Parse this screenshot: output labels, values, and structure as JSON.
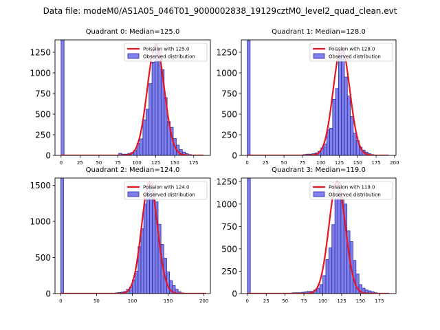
{
  "figure": {
    "suptitle": "Data file: modeM0/AS1A05_046T01_9000002838_19129cztM0_level2_quad_clean.evt"
  },
  "legend": {
    "observed_label": "Observed distribution"
  },
  "colors": {
    "bar_fill": "#8080ea",
    "bar_edge": "#2a2aa8",
    "fit_line": "#e8141e"
  },
  "chart_data": [
    {
      "type": "bar",
      "title": "Quadrant 0: Median=125.0",
      "fit_label": "Poission with 125.0",
      "median": 125.0,
      "peak": 1340,
      "sigma": 11.2,
      "xlim": [
        -8,
        197
      ],
      "ylim": [
        0,
        1400
      ],
      "xticks": [
        0,
        25,
        50,
        75,
        100,
        125,
        150,
        175
      ],
      "yticks": [
        0,
        250,
        500,
        750,
        1000,
        1250
      ],
      "fit_range": [
        0,
        188
      ],
      "bin_width": 4,
      "zero_bar": 1400,
      "bins": [
        [
          76,
          25
        ],
        [
          80,
          15
        ],
        [
          84,
          15
        ],
        [
          88,
          25
        ],
        [
          92,
          35
        ],
        [
          96,
          60
        ],
        [
          100,
          145
        ],
        [
          104,
          200
        ],
        [
          108,
          430
        ],
        [
          112,
          560
        ],
        [
          116,
          870
        ],
        [
          120,
          1130
        ],
        [
          124,
          1350
        ],
        [
          128,
          1270
        ],
        [
          132,
          1040
        ],
        [
          136,
          700
        ],
        [
          140,
          410
        ],
        [
          144,
          340
        ],
        [
          148,
          205
        ],
        [
          152,
          125
        ],
        [
          156,
          70
        ],
        [
          160,
          40
        ],
        [
          164,
          20
        ],
        [
          168,
          10
        ]
      ]
    },
    {
      "type": "bar",
      "title": "Quadrant 1: Median=128.0",
      "fit_label": "Poission with 128.0",
      "median": 128.0,
      "peak": 1310,
      "sigma": 11.3,
      "xlim": [
        -8,
        202
      ],
      "ylim": [
        0,
        1400
      ],
      "xticks": [
        0,
        25,
        50,
        75,
        100,
        125,
        150,
        175,
        200
      ],
      "yticks": [
        0,
        250,
        500,
        750,
        1000,
        1250
      ],
      "fit_range": [
        0,
        192
      ],
      "bin_width": 4,
      "zero_bar": 1400,
      "bins": [
        [
          76,
          10
        ],
        [
          80,
          15
        ],
        [
          84,
          15
        ],
        [
          88,
          20
        ],
        [
          92,
          30
        ],
        [
          96,
          50
        ],
        [
          100,
          90
        ],
        [
          104,
          140
        ],
        [
          108,
          310
        ],
        [
          112,
          330
        ],
        [
          116,
          680
        ],
        [
          120,
          810
        ],
        [
          124,
          1240
        ],
        [
          128,
          1310
        ],
        [
          132,
          950
        ],
        [
          136,
          720
        ],
        [
          140,
          470
        ],
        [
          144,
          270
        ],
        [
          148,
          180
        ],
        [
          152,
          100
        ],
        [
          156,
          65
        ],
        [
          160,
          40
        ],
        [
          164,
          20
        ],
        [
          168,
          10
        ]
      ]
    },
    {
      "type": "bar",
      "title": "Quadrant 2: Median=124.0",
      "fit_label": "Poission with 124.0",
      "median": 124.0,
      "peak": 1540,
      "sigma": 11.1,
      "xlim": [
        -8,
        209
      ],
      "ylim": [
        0,
        1600
      ],
      "xticks": [
        0,
        50,
        100,
        150,
        200
      ],
      "yticks": [
        0,
        500,
        1000,
        1500
      ],
      "fit_range": [
        0,
        203
      ],
      "bin_width": 4,
      "zero_bar": 1600,
      "bins": [
        [
          76,
          10
        ],
        [
          80,
          15
        ],
        [
          84,
          20
        ],
        [
          88,
          30
        ],
        [
          92,
          60
        ],
        [
          96,
          90
        ],
        [
          100,
          190
        ],
        [
          104,
          310
        ],
        [
          108,
          650
        ],
        [
          112,
          900
        ],
        [
          116,
          1240
        ],
        [
          120,
          1480
        ],
        [
          124,
          1530
        ],
        [
          128,
          1420
        ],
        [
          132,
          1270
        ],
        [
          136,
          960
        ],
        [
          140,
          680
        ],
        [
          144,
          490
        ],
        [
          148,
          300
        ],
        [
          152,
          180
        ],
        [
          156,
          110
        ],
        [
          160,
          60
        ],
        [
          164,
          25
        ],
        [
          168,
          10
        ]
      ]
    },
    {
      "type": "bar",
      "title": "Quadrant 3: Median=119.0",
      "fit_label": "Poission with 119.0",
      "median": 119.0,
      "peak": 1250,
      "sigma": 10.9,
      "xlim": [
        -8,
        197
      ],
      "ylim": [
        0,
        1290
      ],
      "xticks": [
        0,
        25,
        50,
        75,
        100,
        125,
        150,
        175
      ],
      "yticks": [
        0,
        250,
        500,
        750,
        1000,
        1250
      ],
      "fit_range": [
        0,
        188
      ],
      "bin_width": 4,
      "zero_bar": 1290,
      "bins": [
        [
          44,
          5
        ],
        [
          48,
          5
        ],
        [
          52,
          5
        ],
        [
          56,
          5
        ],
        [
          60,
          10
        ],
        [
          64,
          10
        ],
        [
          68,
          10
        ],
        [
          72,
          15
        ],
        [
          76,
          20
        ],
        [
          80,
          25
        ],
        [
          84,
          25
        ],
        [
          88,
          40
        ],
        [
          92,
          60
        ],
        [
          96,
          100
        ],
        [
          100,
          200
        ],
        [
          104,
          380
        ],
        [
          108,
          510
        ],
        [
          112,
          770
        ],
        [
          116,
          1060
        ],
        [
          120,
          1240
        ],
        [
          124,
          1080
        ],
        [
          128,
          1000
        ],
        [
          132,
          700
        ],
        [
          136,
          580
        ],
        [
          140,
          370
        ],
        [
          144,
          220
        ],
        [
          148,
          100
        ],
        [
          152,
          60
        ],
        [
          156,
          40
        ],
        [
          160,
          30
        ],
        [
          164,
          20
        ],
        [
          168,
          10
        ]
      ]
    }
  ]
}
